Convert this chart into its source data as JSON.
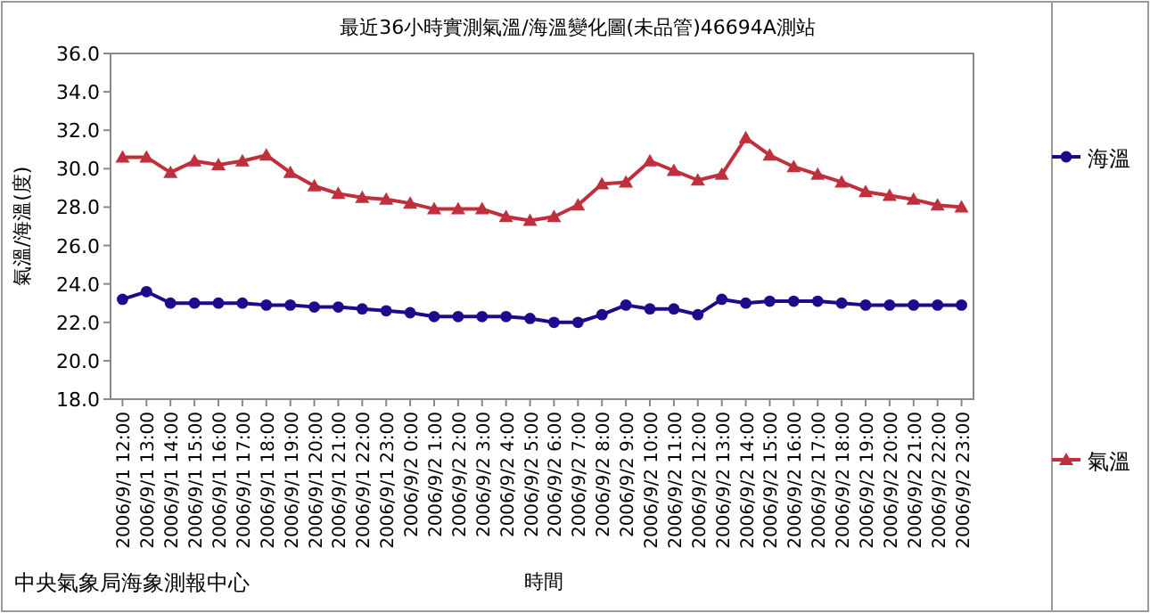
{
  "chart_data": {
    "type": "line",
    "title": "最近36小時實測氣溫/海溫變化圖(未品管)46694A測站",
    "xlabel": "時間",
    "ylabel": "氣溫/海溫(度)",
    "categories": [
      "2006/9/1 12:00",
      "2006/9/1 13:00",
      "2006/9/1 14:00",
      "2006/9/1 15:00",
      "2006/9/1 16:00",
      "2006/9/1 17:00",
      "2006/9/1 18:00",
      "2006/9/1 19:00",
      "2006/9/1 20:00",
      "2006/9/1 21:00",
      "2006/9/1 22:00",
      "2006/9/1 23:00",
      "2006/9/2 0:00",
      "2006/9/2 1:00",
      "2006/9/2 2:00",
      "2006/9/2 3:00",
      "2006/9/2 4:00",
      "2006/9/2 5:00",
      "2006/9/2 6:00",
      "2006/9/2 7:00",
      "2006/9/2 8:00",
      "2006/9/2 9:00",
      "2006/9/2 10:00",
      "2006/9/2 11:00",
      "2006/9/2 12:00",
      "2006/9/2 13:00",
      "2006/9/2 14:00",
      "2006/9/2 15:00",
      "2006/9/2 16:00",
      "2006/9/2 17:00",
      "2006/9/2 18:00",
      "2006/9/2 19:00",
      "2006/9/2 20:00",
      "2006/9/2 21:00",
      "2006/9/2 22:00",
      "2006/9/2 23:00"
    ],
    "series": [
      {
        "name": "海溫",
        "color": "#200a8c",
        "marker": "circle",
        "values": [
          23.2,
          23.6,
          23.0,
          23.0,
          23.0,
          23.0,
          22.9,
          22.9,
          22.8,
          22.8,
          22.7,
          22.6,
          22.5,
          22.3,
          22.3,
          22.3,
          22.3,
          22.2,
          22.0,
          22.0,
          22.4,
          22.9,
          22.7,
          22.7,
          22.4,
          23.2,
          23.0,
          23.1,
          23.1,
          23.1,
          23.0,
          22.9,
          22.9,
          22.9,
          22.9,
          22.9
        ]
      },
      {
        "name": "氣溫",
        "color": "#c0303c",
        "marker": "triangle",
        "values": [
          30.6,
          30.6,
          29.8,
          30.4,
          30.2,
          30.4,
          30.7,
          29.8,
          29.1,
          28.7,
          28.5,
          28.4,
          28.2,
          27.9,
          27.9,
          27.9,
          27.5,
          27.3,
          27.5,
          28.1,
          29.2,
          29.3,
          30.4,
          29.9,
          29.4,
          29.7,
          31.6,
          30.7,
          30.1,
          29.7,
          29.3,
          28.8,
          28.6,
          28.4,
          28.1,
          28.0
        ]
      }
    ],
    "ylim": [
      18,
      36
    ],
    "yticks": [
      {
        "value": 18,
        "label": "18.0"
      },
      {
        "value": 20,
        "label": "20.0"
      },
      {
        "value": 22,
        "label": "22.0"
      },
      {
        "value": 24,
        "label": "24.0"
      },
      {
        "value": 26,
        "label": "26.0"
      },
      {
        "value": 28,
        "label": "28.0"
      },
      {
        "value": 30,
        "label": "30.0"
      },
      {
        "value": 32,
        "label": "32.0"
      },
      {
        "value": 34,
        "label": "34.0"
      },
      {
        "value": 36,
        "label": "36.0"
      }
    ],
    "grid": false,
    "legend": "right",
    "line_style": "solid",
    "annotations": [
      "中央氣象局海象測報中心"
    ]
  }
}
